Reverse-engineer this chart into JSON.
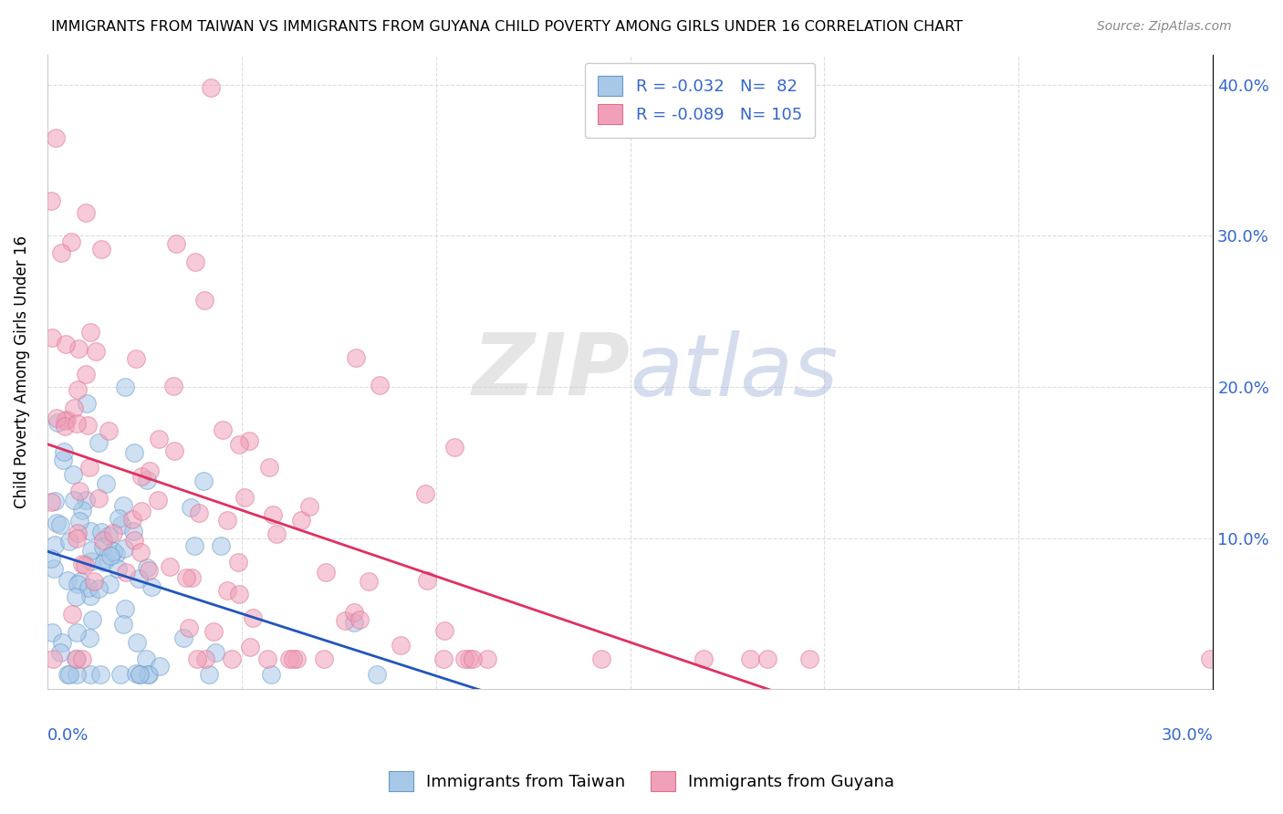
{
  "title": "IMMIGRANTS FROM TAIWAN VS IMMIGRANTS FROM GUYANA CHILD POVERTY AMONG GIRLS UNDER 16 CORRELATION CHART",
  "source": "Source: ZipAtlas.com",
  "ylabel": "Child Poverty Among Girls Under 16",
  "watermark_part1": "ZIP",
  "watermark_part2": "atlas",
  "taiwan_R": -0.032,
  "taiwan_N": 82,
  "guyana_R": -0.089,
  "guyana_N": 105,
  "taiwan_color": "#A8C8E8",
  "guyana_color": "#F0A0B8",
  "taiwan_line_color": "#2255BB",
  "guyana_line_color": "#E03060",
  "taiwan_marker_edge": "#6699CC",
  "guyana_marker_edge": "#E07090",
  "xlim": [
    0.0,
    0.3
  ],
  "ylim": [
    0.0,
    0.42
  ],
  "x_ticks": [
    0.0,
    0.05,
    0.1,
    0.15,
    0.2,
    0.25,
    0.3
  ],
  "y_ticks": [
    0.1,
    0.2,
    0.3,
    0.4
  ],
  "y_tick_labels": [
    "10.0%",
    "20.0%",
    "30.0%",
    "40.0%"
  ],
  "taiwan_scatter_seed": 123,
  "guyana_scatter_seed": 456,
  "legend_label_1": "Immigrants from Taiwan",
  "legend_label_2": "Immigrants from Guyana"
}
